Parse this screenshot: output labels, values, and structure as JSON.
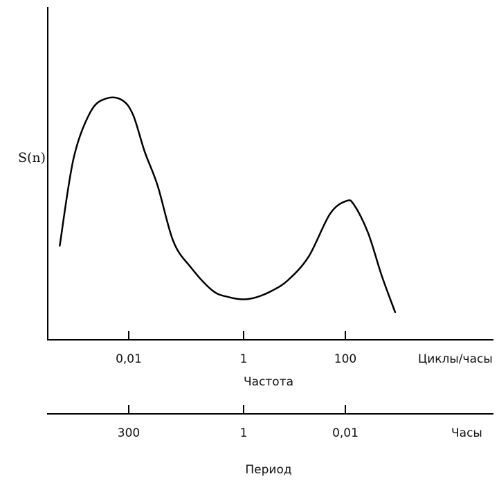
{
  "chart_data": {
    "type": "line",
    "ylabel": "S(n)",
    "frequency_axis": {
      "scale": "log",
      "ticks": [
        {
          "value": 0.01,
          "label": "0,01"
        },
        {
          "value": 1,
          "label": "1"
        },
        {
          "value": 100,
          "label": "100"
        }
      ],
      "unit": "Циклы/часы",
      "title": "Частота"
    },
    "period_axis": {
      "ticks": [
        {
          "value": 300,
          "label": "300"
        },
        {
          "value": 1,
          "label": "1"
        },
        {
          "value": 0.01,
          "label": "0,01"
        }
      ],
      "unit": "Часы",
      "title": "Период"
    },
    "y_relative_range": [
      0,
      1
    ],
    "series": [
      {
        "x": [
          0.00063,
          0.0011,
          0.0022,
          0.0042,
          0.0078,
          0.012,
          0.019,
          0.032,
          0.06,
          0.12,
          0.29,
          0.56,
          1.0,
          1.8,
          3.6,
          7.5,
          19,
          50,
          105,
          150,
          280,
          520,
          950
        ],
        "y": [
          0.31,
          0.72,
          0.94,
          1.0,
          0.99,
          0.92,
          0.75,
          0.59,
          0.33,
          0.21,
          0.1,
          0.07,
          0.06,
          0.07,
          0.1,
          0.15,
          0.26,
          0.46,
          0.52,
          0.5,
          0.37,
          0.17,
          0.0
        ]
      }
    ]
  }
}
